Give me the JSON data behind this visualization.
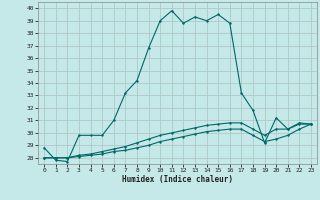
{
  "title": "",
  "xlabel": "Humidex (Indice chaleur)",
  "xlim": [
    -0.5,
    23.5
  ],
  "ylim": [
    27.5,
    40.5
  ],
  "yticks": [
    28,
    29,
    30,
    31,
    32,
    33,
    34,
    35,
    36,
    37,
    38,
    39,
    40
  ],
  "xticks": [
    0,
    1,
    2,
    3,
    4,
    5,
    6,
    7,
    8,
    9,
    10,
    11,
    12,
    13,
    14,
    15,
    16,
    17,
    18,
    19,
    20,
    21,
    22,
    23
  ],
  "background_color": "#c5e8e8",
  "grid_color": "#b0c8c8",
  "line_color": "#006868",
  "line1_x": [
    0,
    1,
    2,
    3,
    4,
    5,
    6,
    7,
    8,
    9,
    10,
    11,
    12,
    13,
    14,
    15,
    16,
    17,
    18,
    19,
    20,
    21,
    22,
    23
  ],
  "line1_y": [
    28.8,
    27.8,
    27.7,
    29.8,
    29.8,
    29.8,
    31.0,
    33.2,
    34.2,
    36.8,
    39.0,
    39.8,
    38.8,
    39.3,
    39.0,
    39.5,
    38.8,
    33.2,
    31.8,
    29.2,
    31.2,
    30.3,
    30.8,
    30.7
  ],
  "line2_x": [
    0,
    1,
    2,
    3,
    4,
    5,
    6,
    7,
    8,
    9,
    10,
    11,
    12,
    13,
    14,
    15,
    16,
    17,
    18,
    19,
    20,
    21,
    22,
    23
  ],
  "line2_y": [
    28.0,
    28.0,
    28.0,
    28.2,
    28.3,
    28.5,
    28.7,
    28.9,
    29.2,
    29.5,
    29.8,
    30.0,
    30.2,
    30.4,
    30.6,
    30.7,
    30.8,
    30.8,
    30.3,
    29.8,
    30.3,
    30.3,
    30.7,
    30.7
  ],
  "line3_x": [
    0,
    1,
    2,
    3,
    4,
    5,
    6,
    7,
    8,
    9,
    10,
    11,
    12,
    13,
    14,
    15,
    16,
    17,
    18,
    19,
    20,
    21,
    22,
    23
  ],
  "line3_y": [
    28.0,
    28.0,
    28.0,
    28.1,
    28.2,
    28.3,
    28.5,
    28.6,
    28.8,
    29.0,
    29.3,
    29.5,
    29.7,
    29.9,
    30.1,
    30.2,
    30.3,
    30.3,
    29.8,
    29.3,
    29.5,
    29.8,
    30.3,
    30.7
  ]
}
